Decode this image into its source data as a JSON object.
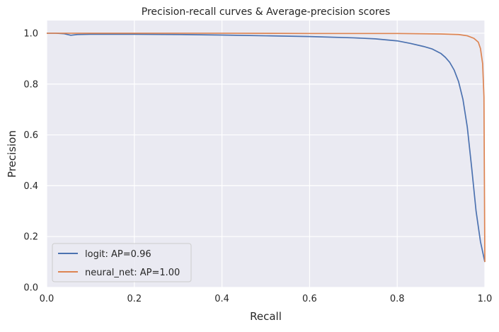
{
  "chart_data": {
    "type": "line",
    "title": "Precision-recall curves & Average-precision scores",
    "xlabel": "Recall",
    "ylabel": "Precision",
    "xlim": [
      0.0,
      1.0
    ],
    "ylim": [
      0.0,
      1.05
    ],
    "xticks": [
      0.0,
      0.2,
      0.4,
      0.6,
      0.8,
      1.0
    ],
    "xtick_labels": [
      "0.0",
      "0.2",
      "0.4",
      "0.6",
      "0.8",
      "1.0"
    ],
    "yticks": [
      0.0,
      0.2,
      0.4,
      0.6,
      0.8,
      1.0
    ],
    "ytick_labels": [
      "0.0",
      "0.2",
      "0.4",
      "0.6",
      "0.8",
      "1.0"
    ],
    "grid": true,
    "legend_position": "lower-left",
    "background_color": "#EAEAF2",
    "grid_color": "#FFFFFF",
    "series": [
      {
        "name": "logit: AP=0.96",
        "color": "#4C72B0",
        "x": [
          0.0,
          0.02,
          0.04,
          0.055,
          0.07,
          0.1,
          0.2,
          0.3,
          0.4,
          0.5,
          0.6,
          0.7,
          0.75,
          0.8,
          0.83,
          0.86,
          0.88,
          0.9,
          0.91,
          0.92,
          0.93,
          0.94,
          0.95,
          0.96,
          0.97,
          0.98,
          0.99,
          1.0
        ],
        "y": [
          1.0,
          1.0,
          0.998,
          0.992,
          0.995,
          0.996,
          0.996,
          0.995,
          0.993,
          0.99,
          0.987,
          0.982,
          0.978,
          0.97,
          0.96,
          0.948,
          0.938,
          0.92,
          0.905,
          0.885,
          0.855,
          0.81,
          0.74,
          0.63,
          0.47,
          0.3,
          0.18,
          0.1
        ]
      },
      {
        "name": "neural_net: AP=1.00",
        "color": "#DD8452",
        "x": [
          0.0,
          0.2,
          0.4,
          0.6,
          0.8,
          0.9,
          0.94,
          0.96,
          0.975,
          0.985,
          0.99,
          0.995,
          0.998,
          1.0
        ],
        "y": [
          1.0,
          1.0,
          1.0,
          0.999,
          0.999,
          0.997,
          0.995,
          0.99,
          0.98,
          0.965,
          0.94,
          0.88,
          0.75,
          0.1
        ]
      }
    ]
  }
}
